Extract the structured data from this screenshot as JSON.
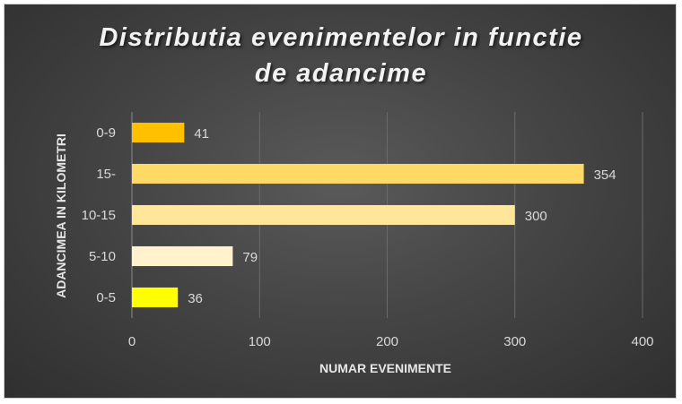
{
  "chart_data": {
    "type": "bar",
    "orientation": "horizontal",
    "title": "Distributia evenimentelor in functie de adancime",
    "title_lines": [
      "Distributia evenimentelor  in functie",
      "de adancime"
    ],
    "xlabel": "NUMAR EVENIMENTE",
    "ylabel": "ADANCIMEA  IN KILOMETRI",
    "categories": [
      "0-9",
      "15-",
      "10-15",
      "5-10",
      "0-5"
    ],
    "values": [
      41,
      354,
      300,
      79,
      36
    ],
    "bar_colors": [
      "#ffc000",
      "#ffd966",
      "#ffe699",
      "#fff2cc",
      "#ffff00"
    ],
    "xlim": [
      0,
      400
    ],
    "xticks": [
      0,
      100,
      200,
      300,
      400
    ],
    "grid": true,
    "legend": "none"
  }
}
